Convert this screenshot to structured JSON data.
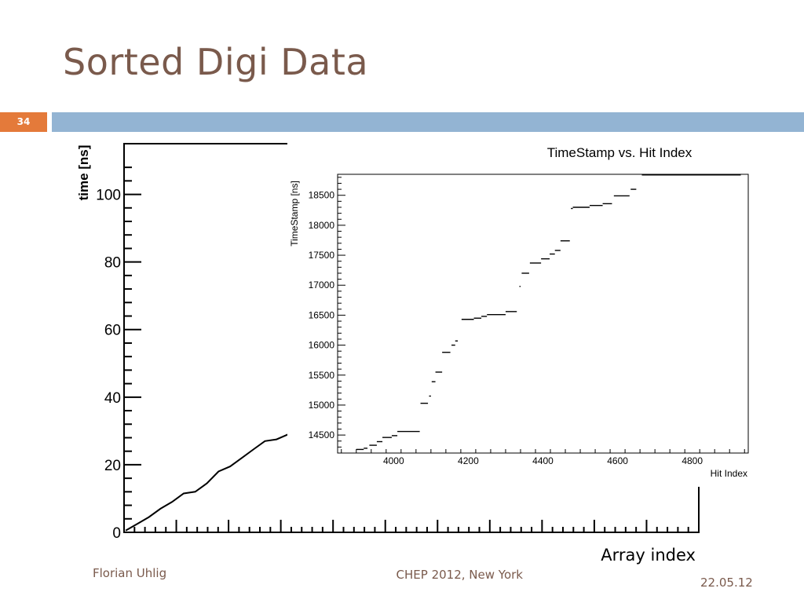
{
  "slide": {
    "title": "Sorted Digi Data",
    "number": "34",
    "footer_left": "Florian Uhlig",
    "footer_center": "CHEP 2012, New York",
    "footer_right": "22.05.12",
    "colors": {
      "title": "#7a5a4c",
      "accent_orange": "#e47a3a",
      "accent_blue": "#93b4d3"
    }
  },
  "chart_data": [
    {
      "type": "line",
      "title": "",
      "xlabel": "Array index",
      "ylabel": "time [ns]",
      "ylim": [
        0,
        115
      ],
      "y_ticks": [
        0,
        20,
        40,
        60,
        80,
        100
      ],
      "y_tick_labels": [
        "0",
        "20",
        "40",
        "60",
        "80",
        "100"
      ],
      "grid": false,
      "series": [
        {
          "values": [
            0.5,
            2.5,
            4.5,
            7,
            9,
            11.5,
            12,
            14.5,
            18,
            19.5,
            22,
            24.5,
            27,
            27.5,
            29
          ]
        }
      ]
    },
    {
      "type": "scatter",
      "title": "TimeStamp vs. Hit Index",
      "xlabel": "Hit Index",
      "ylabel": "TimeStamp [ns]",
      "xlim": [
        3850,
        4950
      ],
      "ylim": [
        14200,
        18850
      ],
      "x_ticks": [
        4000,
        4200,
        4400,
        4600,
        4800
      ],
      "y_ticks": [
        14500,
        15000,
        15500,
        16000,
        16500,
        17000,
        17500,
        18000,
        18500
      ],
      "grid": false,
      "segments": [
        [
          3900,
          3920,
          14260
        ],
        [
          3920,
          3930,
          14280
        ],
        [
          3935,
          3955,
          14330
        ],
        [
          3955,
          3970,
          14390
        ],
        [
          3970,
          3995,
          14460
        ],
        [
          3995,
          4010,
          14490
        ],
        [
          4010,
          4070,
          14560
        ],
        [
          4072,
          4092,
          15030
        ],
        [
          4095,
          4100,
          15150
        ],
        [
          4102,
          4112,
          15390
        ],
        [
          4112,
          4130,
          15550
        ],
        [
          4130,
          4152,
          15880
        ],
        [
          4155,
          4165,
          16000
        ],
        [
          4165,
          4172,
          16070
        ],
        [
          4182,
          4215,
          16430
        ],
        [
          4215,
          4235,
          16450
        ],
        [
          4235,
          4250,
          16480
        ],
        [
          4250,
          4300,
          16510
        ],
        [
          4300,
          4330,
          16560
        ],
        [
          4337,
          4340,
          16980
        ],
        [
          4343,
          4363,
          17200
        ],
        [
          4365,
          4395,
          17370
        ],
        [
          4395,
          4418,
          17440
        ],
        [
          4418,
          4432,
          17520
        ],
        [
          4432,
          4447,
          17580
        ],
        [
          4447,
          4472,
          17740
        ],
        [
          4475,
          4480,
          18280
        ],
        [
          4480,
          4525,
          18300
        ],
        [
          4525,
          4560,
          18330
        ],
        [
          4560,
          4585,
          18360
        ],
        [
          4590,
          4632,
          18490
        ],
        [
          4635,
          4650,
          18600
        ],
        [
          4665,
          4930,
          18840
        ]
      ]
    }
  ]
}
